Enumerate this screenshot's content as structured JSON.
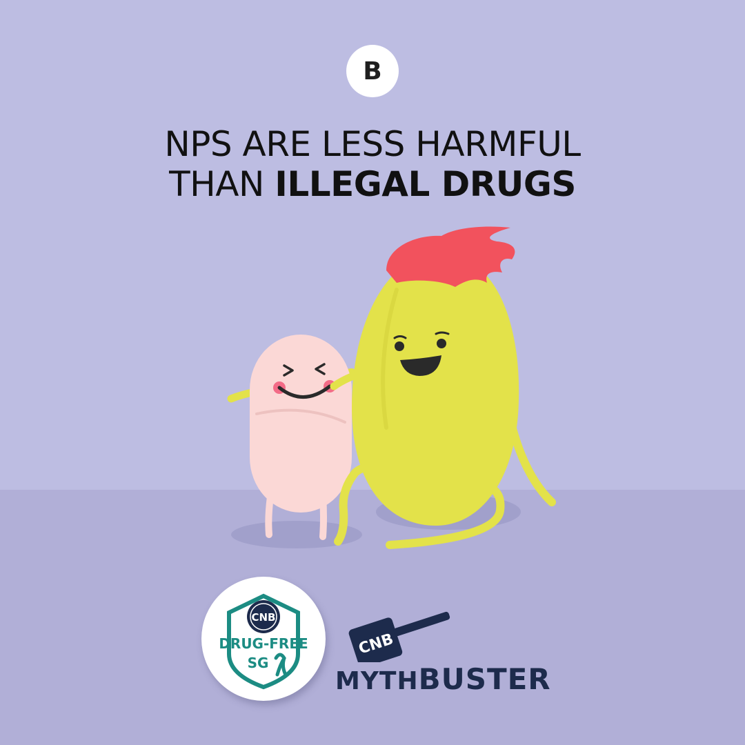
{
  "badge": {
    "letter": "B"
  },
  "headline": {
    "line1": "NPS ARE LESS HARMFUL",
    "line2_regular": "THAN ",
    "line2_bold": "ILLEGAL DRUGS"
  },
  "logos": {
    "cnb_badge": {
      "top_text": "CNB",
      "main_text": "DRUG-FREE",
      "sub_text": "SG"
    },
    "mythbuster": {
      "hammer_text": "CNB",
      "word_part1": "MYTH",
      "word_part2": "BUSTER"
    }
  },
  "colors": {
    "background": "#bdbde2",
    "floor": "#b1afd7",
    "yellow_character": "#e3e24a",
    "pink_character": "#fbd8d6",
    "hair": "#f2525d",
    "logo_navy": "#1d2b4c",
    "logo_teal": "#1c8c83"
  },
  "characters": [
    {
      "name": "pink-pill-character",
      "expression": "happy"
    },
    {
      "name": "yellow-pill-character",
      "expression": "smiling"
    }
  ]
}
